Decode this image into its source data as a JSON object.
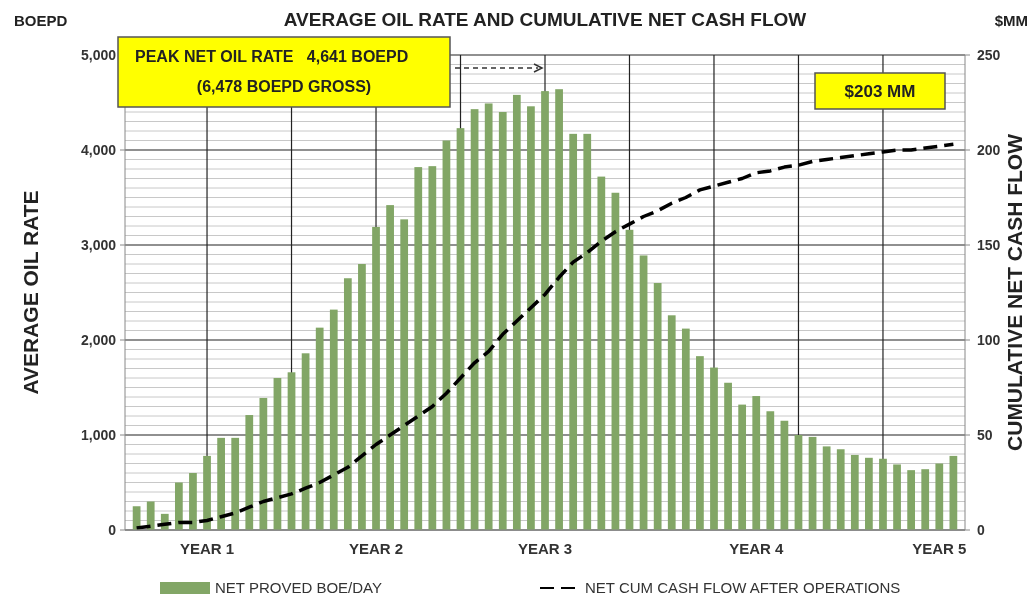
{
  "chart_data": {
    "type": "bar",
    "title": "AVERAGE OIL RATE AND CUMULATIVE NET CASH FLOW",
    "ylabel": "AVERAGE OIL RATE",
    "y2label": "CUMULATIVE NET CASH FLOW",
    "annotations": [
      "PEAK NET OIL RATE   4,641 BOEPD",
      "(6,478 BOEPD GROSS)",
      "$203 MM",
      "BOEPD",
      "$MM"
    ],
    "categories": [
      null,
      null,
      null,
      null,
      null,
      "YEAR 1",
      null,
      null,
      null,
      null,
      null,
      null,
      null,
      null,
      null,
      null,
      null,
      "YEAR 2",
      null,
      null,
      null,
      null,
      null,
      null,
      null,
      null,
      null,
      null,
      null,
      "YEAR 3",
      null,
      null,
      null,
      null,
      null,
      null,
      null,
      null,
      null,
      null,
      null,
      null,
      null,
      null,
      "YEAR 4",
      null,
      null,
      null,
      null,
      null,
      null,
      null,
      null,
      null,
      null,
      null,
      null,
      "YEAR 5",
      null
    ],
    "series": [
      {
        "name": "NET PROVED BOE/DAY",
        "color": "#82a666",
        "values": [
          250,
          300,
          170,
          500,
          600,
          780,
          970,
          970,
          1210,
          1390,
          1600,
          1660,
          1860,
          2130,
          2320,
          2650,
          2800,
          3190,
          3420,
          3270,
          3820,
          3830,
          4100,
          4230,
          4430,
          4490,
          4400,
          4580,
          4460,
          4620,
          4640,
          4170,
          4170,
          3720,
          3550,
          3160,
          2890,
          2600,
          2260,
          2120,
          1830,
          1710,
          1550,
          1320,
          1410,
          1250,
          1150,
          1000,
          980,
          880,
          850,
          790,
          760,
          750,
          690,
          630,
          640,
          700,
          780
        ]
      },
      {
        "name": "NET CUM CASH FLOW AFTER OPERATIONS",
        "type": "line",
        "axis": "y2",
        "color": "#000000",
        "values": [
          1,
          2,
          3,
          4,
          4,
          5,
          7,
          9,
          12,
          15,
          17,
          19,
          22,
          25,
          29,
          33,
          39,
          45,
          50,
          55,
          60,
          65,
          72,
          80,
          88,
          94,
          103,
          110,
          117,
          124,
          133,
          141,
          146,
          152,
          157,
          161,
          165,
          168,
          172,
          175,
          179,
          181,
          183,
          185,
          188,
          189,
          191,
          192,
          194,
          195,
          196,
          197,
          198,
          199,
          200,
          200,
          201,
          202,
          203
        ]
      }
    ],
    "ylim": [
      0,
      5000
    ],
    "yticks": [
      {
        "value": 0,
        "label": "0"
      },
      {
        "value": 1000,
        "label": "1,000"
      },
      {
        "value": 2000,
        "label": "2,000"
      },
      {
        "value": 3000,
        "label": "3,000"
      },
      {
        "value": 4000,
        "label": "4,000"
      },
      {
        "value": 5000,
        "label": "5,000"
      }
    ],
    "y2lim": [
      0,
      250
    ],
    "y2ticks": [
      0,
      50,
      100,
      150,
      200,
      250
    ],
    "grid": true,
    "legend": "bottom",
    "marker": "none",
    "line_style": "dashed"
  }
}
